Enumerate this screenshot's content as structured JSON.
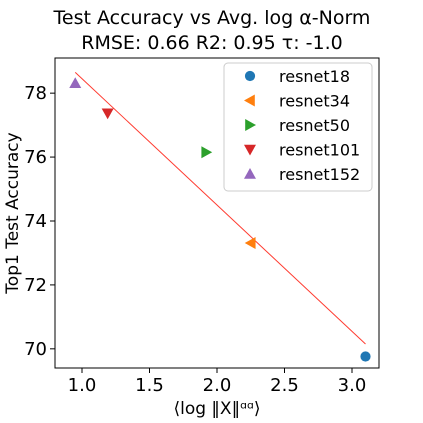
{
  "chart_data": {
    "type": "scatter",
    "title": "Test Accuracy vs Avg. log α-Norm",
    "subtitle": "RMSE: 0.66 R2: 0.95 τ: -1.0",
    "xlabel": "⟨log ‖X‖ᵅᵅ⟩",
    "ylabel": "Top1 Test Accuracy",
    "xlim": [
      0.8,
      3.2
    ],
    "ylim": [
      69.4,
      79.1
    ],
    "xticks": [
      "1.0",
      "1.5",
      "2.0",
      "2.5",
      "3.0"
    ],
    "yticks": [
      "70",
      "72",
      "74",
      "76",
      "78"
    ],
    "grid": false,
    "legend_position": "top-right",
    "series": [
      {
        "name": "resnet18",
        "marker": "circle",
        "color": "#1f77b4",
        "x": 3.1,
        "y": 69.76
      },
      {
        "name": "resnet34",
        "marker": "triangle-left",
        "color": "#ff7f0e",
        "x": 2.25,
        "y": 73.31
      },
      {
        "name": "resnet50",
        "marker": "triangle-right",
        "color": "#2ca02c",
        "x": 1.92,
        "y": 76.15
      },
      {
        "name": "resnet101",
        "marker": "triangle-down",
        "color": "#d62728",
        "x": 1.19,
        "y": 77.37
      },
      {
        "name": "resnet152",
        "marker": "triangle-up",
        "color": "#9467bd",
        "x": 0.95,
        "y": 78.31
      }
    ],
    "fit_line": {
      "color": "#ff3b30",
      "x": [
        0.95,
        3.1
      ],
      "y": [
        78.65,
        70.15
      ]
    }
  }
}
